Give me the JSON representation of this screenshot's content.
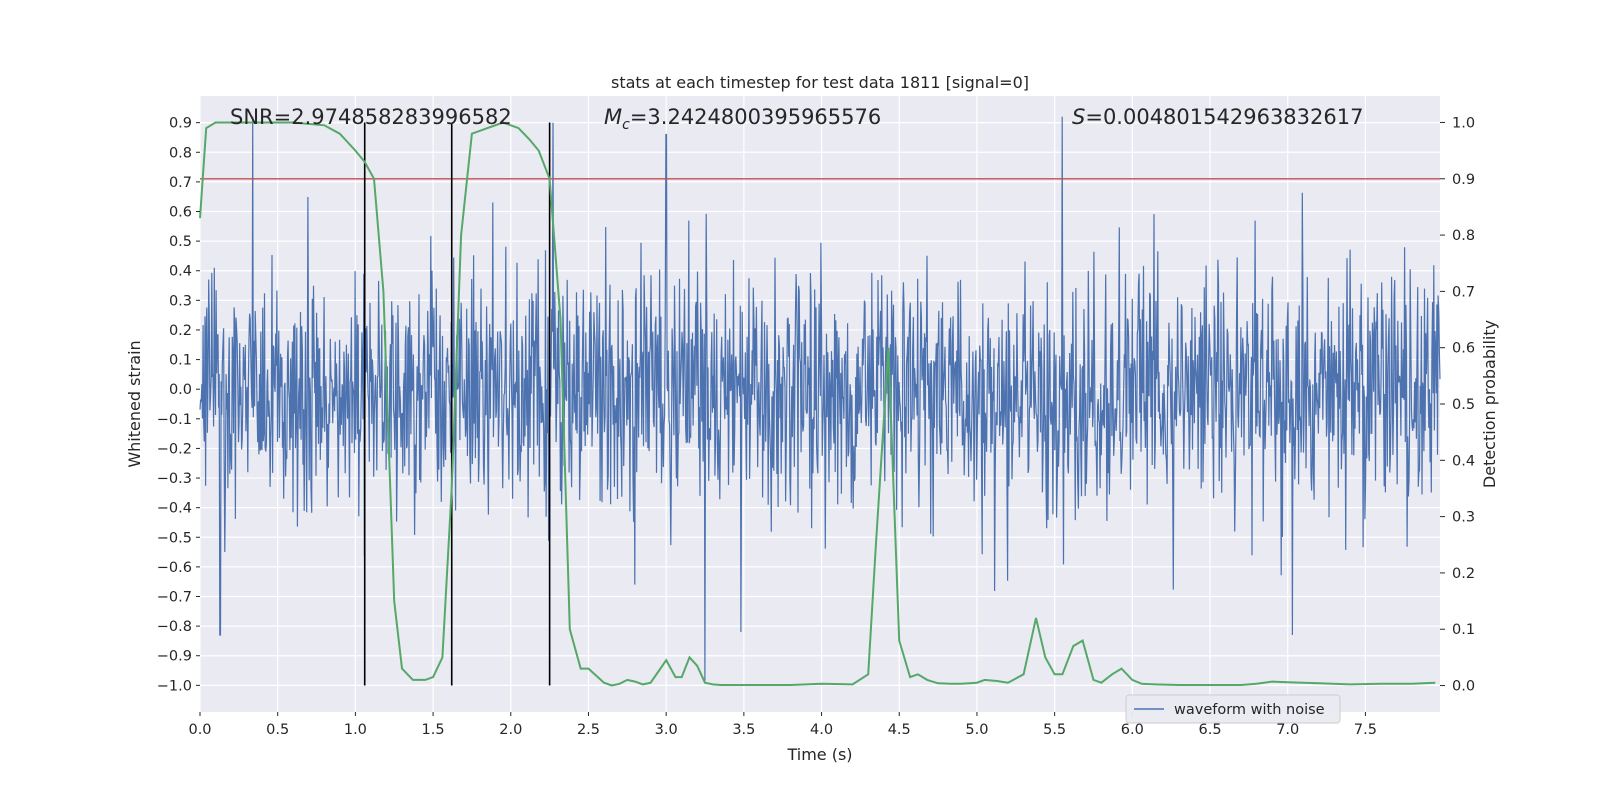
{
  "chart_data": {
    "type": "line",
    "title": "stats at each timestep for test data 1811 [signal=0]",
    "xlabel": "Time (s)",
    "ylabel": "Whitened strain",
    "ylabel_right": "Detection probability",
    "xlim": [
      0.0,
      7.98
    ],
    "ylim": [
      -1.09,
      0.99
    ],
    "ylim_right": [
      -0.047,
      1.047
    ],
    "x_ticks": [
      "0.0",
      "0.5",
      "1.0",
      "1.5",
      "2.0",
      "2.5",
      "3.0",
      "3.5",
      "4.0",
      "4.5",
      "5.0",
      "5.5",
      "6.0",
      "6.5",
      "7.0",
      "7.5"
    ],
    "x_tick_values": [
      0.0,
      0.5,
      1.0,
      1.5,
      2.0,
      2.5,
      3.0,
      3.5,
      4.0,
      4.5,
      5.0,
      5.5,
      6.0,
      6.5,
      7.0,
      7.5
    ],
    "y_ticks": [
      "0.9",
      "0.8",
      "0.7",
      "0.6",
      "0.5",
      "0.4",
      "0.3",
      "0.2",
      "0.1",
      "0.0",
      "−0.1",
      "−0.2",
      "−0.3",
      "−0.4",
      "−0.5",
      "−0.6",
      "−0.7",
      "−0.8",
      "−0.9",
      "−1.0"
    ],
    "y_tick_values": [
      0.9,
      0.8,
      0.7,
      0.6,
      0.5,
      0.4,
      0.3,
      0.2,
      0.1,
      0.0,
      -0.1,
      -0.2,
      -0.3,
      -0.4,
      -0.5,
      -0.6,
      -0.7,
      -0.8,
      -0.9,
      -1.0
    ],
    "y_ticks_right": [
      "1.0",
      "0.9",
      "0.8",
      "0.7",
      "0.6",
      "0.5",
      "0.4",
      "0.3",
      "0.2",
      "0.1",
      "0.0"
    ],
    "y_tick_values_right": [
      1.0,
      0.9,
      0.8,
      0.7,
      0.6,
      0.5,
      0.4,
      0.3,
      0.2,
      0.1,
      0.0
    ],
    "annotations": {
      "snr": "SNR=2.974858283996582",
      "mc_symbol": "M",
      "mc_subscript": "c",
      "mc_value": "=3.2424800395965576",
      "s_symbol": "S",
      "s_value": "=0.004801542963832617"
    },
    "legend": {
      "label": "waveform with noise",
      "placement": "lower-right"
    },
    "threshold": {
      "value_right": 0.9,
      "color": "#c44e52"
    },
    "vertical_markers": [
      1.06,
      1.62,
      2.25
    ],
    "series": [
      {
        "name": "waveform with noise",
        "axis": "left",
        "color": "#4c72b0",
        "kind": "noise",
        "sigma": 0.2,
        "n_samples": 2000,
        "notable_peaks": [
          {
            "x": 0.34,
            "y": 0.92
          },
          {
            "x": 2.27,
            "y": 0.9
          },
          {
            "x": 3.0,
            "y": 0.86
          },
          {
            "x": 5.55,
            "y": 0.92
          },
          {
            "x": 3.25,
            "y": -0.99
          },
          {
            "x": 0.13,
            "y": -0.83
          },
          {
            "x": 7.03,
            "y": -0.83
          },
          {
            "x": 3.48,
            "y": -0.82
          }
        ]
      },
      {
        "name": "detection probability",
        "axis": "right",
        "color": "#55a868",
        "x": [
          0.0,
          0.04,
          0.1,
          0.2,
          0.4,
          0.6,
          0.8,
          0.9,
          1.0,
          1.06,
          1.12,
          1.18,
          1.25,
          1.3,
          1.37,
          1.45,
          1.5,
          1.56,
          1.62,
          1.68,
          1.75,
          1.85,
          1.95,
          2.05,
          2.12,
          2.18,
          2.25,
          2.32,
          2.38,
          2.45,
          2.5,
          2.6,
          2.65,
          2.7,
          2.75,
          2.8,
          2.85,
          2.9,
          2.95,
          3.0,
          3.06,
          3.1,
          3.15,
          3.2,
          3.25,
          3.3,
          3.35,
          3.45,
          3.6,
          3.8,
          4.0,
          4.2,
          4.3,
          4.35,
          4.43,
          4.5,
          4.57,
          4.62,
          4.68,
          4.75,
          4.83,
          4.9,
          5.0,
          5.05,
          5.13,
          5.2,
          5.3,
          5.38,
          5.44,
          5.5,
          5.55,
          5.62,
          5.68,
          5.75,
          5.8,
          5.87,
          5.93,
          6.0,
          6.06,
          6.15,
          6.3,
          6.5,
          6.7,
          6.8,
          6.9,
          7.0,
          7.2,
          7.4,
          7.6,
          7.8,
          7.95
        ],
        "y": [
          0.83,
          0.99,
          1.0,
          1.0,
          1.0,
          1.0,
          0.995,
          0.98,
          0.95,
          0.93,
          0.9,
          0.7,
          0.15,
          0.03,
          0.01,
          0.01,
          0.015,
          0.05,
          0.35,
          0.8,
          0.98,
          0.99,
          1.0,
          0.99,
          0.97,
          0.95,
          0.9,
          0.65,
          0.1,
          0.03,
          0.03,
          0.005,
          0.0,
          0.003,
          0.01,
          0.007,
          0.002,
          0.005,
          0.025,
          0.045,
          0.015,
          0.015,
          0.05,
          0.035,
          0.005,
          0.002,
          0.001,
          0.001,
          0.001,
          0.001,
          0.003,
          0.002,
          0.02,
          0.25,
          0.6,
          0.08,
          0.015,
          0.02,
          0.01,
          0.004,
          0.003,
          0.003,
          0.005,
          0.01,
          0.008,
          0.005,
          0.02,
          0.12,
          0.05,
          0.02,
          0.02,
          0.07,
          0.08,
          0.01,
          0.005,
          0.02,
          0.03,
          0.01,
          0.003,
          0.002,
          0.001,
          0.001,
          0.001,
          0.003,
          0.007,
          0.006,
          0.004,
          0.002,
          0.003,
          0.003,
          0.005
        ]
      }
    ]
  }
}
